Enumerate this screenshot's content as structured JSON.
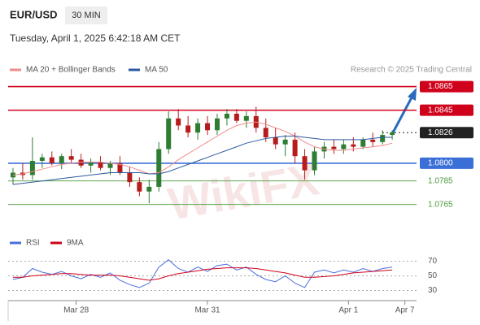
{
  "header": {
    "symbol": "EUR/USD",
    "timeframe": "30 MIN",
    "timestamp": "Tuesday, April 1, 2025 6:42:18 AM CET"
  },
  "chart_data": [
    {
      "type": "candlestick",
      "source": "Research © 2025 Trading Central",
      "watermark": "WikiFX",
      "up_color": "#2e7d32",
      "down_color": "#b71c1c",
      "candles": {
        "open": [
          1.0788,
          1.0792,
          1.079,
          1.0802,
          1.0805,
          1.08,
          1.0806,
          1.0803,
          1.0798,
          1.0801,
          1.0796,
          1.08,
          1.0792,
          1.0784,
          1.0776,
          1.078,
          1.0812,
          1.0838,
          1.0832,
          1.0826,
          1.0834,
          1.0828,
          1.0838,
          1.0842,
          1.0836,
          1.084,
          1.083,
          1.0822,
          1.0816,
          1.082,
          1.0806,
          1.0794,
          1.081,
          1.0814,
          1.0812,
          1.0816,
          1.0814,
          1.082,
          1.0818,
          1.0824
        ],
        "high": [
          1.0796,
          1.08,
          1.0822,
          1.0808,
          1.081,
          1.0808,
          1.0812,
          1.0808,
          1.0804,
          1.0806,
          1.0802,
          1.0806,
          1.0797,
          1.0788,
          1.0786,
          1.0818,
          1.0844,
          1.0846,
          1.084,
          1.0838,
          1.084,
          1.0842,
          1.0846,
          1.0846,
          1.0844,
          1.0848,
          1.0838,
          1.083,
          1.0824,
          1.0826,
          1.0812,
          1.0814,
          1.0818,
          1.082,
          1.082,
          1.0822,
          1.0822,
          1.0826,
          1.0828,
          1.0828
        ],
        "low": [
          1.0782,
          1.0786,
          1.0786,
          1.0796,
          1.0798,
          1.0795,
          1.08,
          1.0796,
          1.0792,
          1.0794,
          1.079,
          1.079,
          1.078,
          1.0772,
          1.0766,
          1.0776,
          1.0808,
          1.0828,
          1.0822,
          1.082,
          1.0824,
          1.0824,
          1.0832,
          1.0834,
          1.083,
          1.0826,
          1.0818,
          1.0812,
          1.0806,
          1.08,
          1.0786,
          1.079,
          1.0804,
          1.0808,
          1.0808,
          1.081,
          1.0812,
          1.0814,
          1.0816,
          1.082
        ],
        "close": [
          1.0792,
          1.079,
          1.0802,
          1.0805,
          1.08,
          1.0806,
          1.0803,
          1.0798,
          1.0801,
          1.0796,
          1.08,
          1.0792,
          1.0784,
          1.0776,
          1.078,
          1.0812,
          1.0838,
          1.0832,
          1.0826,
          1.0834,
          1.0828,
          1.0838,
          1.0842,
          1.0836,
          1.084,
          1.083,
          1.0822,
          1.0816,
          1.082,
          1.0806,
          1.0794,
          1.081,
          1.0814,
          1.0812,
          1.0816,
          1.0814,
          1.082,
          1.0818,
          1.0824,
          1.0826
        ]
      },
      "series": [
        {
          "name": "MA 20 + Bollinger Bands",
          "color": "#f28b8b",
          "values": [
            1.079,
            1.0791,
            1.0793,
            1.0795,
            1.0797,
            1.0799,
            1.08,
            1.0801,
            1.0801,
            1.0801,
            1.08,
            1.0799,
            1.0797,
            1.0794,
            1.0791,
            1.0792,
            1.0797,
            1.0803,
            1.0808,
            1.0813,
            1.0818,
            1.0823,
            1.0828,
            1.0832,
            1.0834,
            1.0835,
            1.0833,
            1.083,
            1.0827,
            1.0823,
            1.0818,
            1.0814,
            1.0812,
            1.0811,
            1.0811,
            1.0812,
            1.0813,
            1.0814,
            1.0815,
            1.0817
          ]
        },
        {
          "name": "MA 50",
          "color": "#2c5aa0",
          "values": [
            1.0782,
            1.0783,
            1.0784,
            1.0785,
            1.0786,
            1.0787,
            1.0788,
            1.0789,
            1.079,
            1.0791,
            1.0792,
            1.0792,
            1.0792,
            1.0792,
            1.0791,
            1.0791,
            1.0793,
            1.0796,
            1.0799,
            1.0802,
            1.0805,
            1.0808,
            1.0811,
            1.0814,
            1.0817,
            1.0819,
            1.0821,
            1.0822,
            1.0823,
            1.0823,
            1.0822,
            1.0821,
            1.082,
            1.082,
            1.082,
            1.082,
            1.082,
            1.0821,
            1.0822,
            1.0822
          ]
        }
      ],
      "levels": [
        {
          "value": 1.0865,
          "label": "1.0865",
          "color": "#d0021b",
          "style": "box"
        },
        {
          "value": 1.0845,
          "label": "1.0845",
          "color": "#d0021b",
          "style": "box"
        },
        {
          "value": 1.0826,
          "label": "1.0826",
          "color": "#222222",
          "style": "dotted"
        },
        {
          "value": 1.08,
          "label": "1.0800",
          "color": "#3b6fd8",
          "style": "box"
        },
        {
          "value": 1.0785,
          "label": "1.0785",
          "color": "#4a9a3a",
          "style": "text"
        },
        {
          "value": 1.0765,
          "label": "1.0765",
          "color": "#4a9a3a",
          "style": "text"
        }
      ],
      "ylim": [
        1.0751,
        1.0873
      ],
      "xlim": [
        -0.5,
        41.5
      ],
      "xticks": [
        {
          "value": 6.5,
          "label": "Mar 28"
        },
        {
          "value": 20,
          "label": "Mar 31"
        },
        {
          "value": 34.5,
          "label": "Apr 1"
        },
        {
          "value": 40.3,
          "label": "Apr 7"
        }
      ]
    },
    {
      "type": "line",
      "series": [
        {
          "name": "RSI",
          "color": "#4a6fdc",
          "values": [
            45,
            48,
            60,
            55,
            52,
            56,
            50,
            46,
            52,
            48,
            54,
            44,
            38,
            34,
            40,
            62,
            72,
            60,
            55,
            62,
            56,
            64,
            66,
            58,
            62,
            52,
            45,
            42,
            50,
            40,
            34,
            55,
            58,
            54,
            58,
            55,
            60,
            56,
            60,
            62
          ]
        },
        {
          "name": "9MA",
          "color": "#d0021b",
          "values": [
            48,
            48,
            50,
            51,
            52,
            53,
            53,
            52,
            51,
            51,
            51,
            50,
            48,
            46,
            44,
            46,
            50,
            53,
            55,
            57,
            59,
            60,
            61,
            61,
            61,
            60,
            58,
            56,
            54,
            51,
            48,
            48,
            49,
            50,
            52,
            54,
            55,
            56,
            57,
            58
          ]
        }
      ],
      "ylim": [
        25,
        75
      ],
      "yticks": [
        30,
        50,
        70
      ],
      "grid": true
    }
  ]
}
